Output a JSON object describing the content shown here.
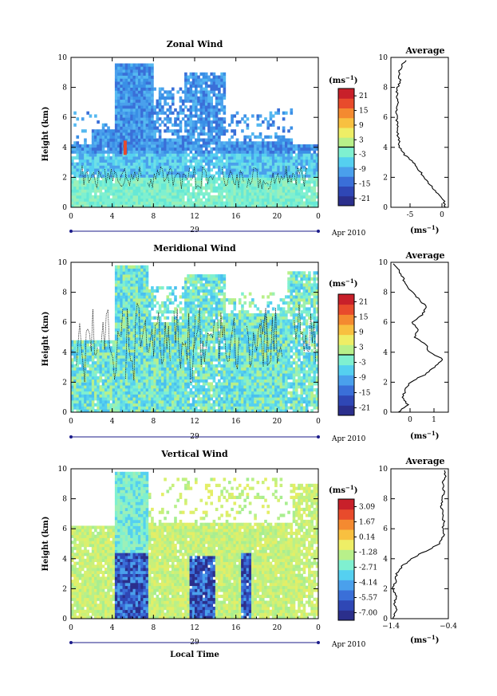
{
  "chart_data": [
    {
      "type": "heatmap",
      "title": "Zonal Wind",
      "ylabel": "Height (km)",
      "xlabel": "",
      "x_ticks": [
        "0",
        "4",
        "8",
        "12",
        "16",
        "20",
        "0"
      ],
      "y_ticks": [
        "0",
        "2",
        "4",
        "6",
        "8",
        "10"
      ],
      "xlim": [
        0,
        24
      ],
      "ylim": [
        0,
        10
      ],
      "date_label": "29",
      "month_label": "Apr 2010",
      "colorbar": {
        "unit": "(ms",
        "unit_exp": "−1",
        "unit_close": ")",
        "ticks": [
          "21",
          "15",
          "9",
          "3",
          "-3",
          "-9",
          "-15",
          "-21"
        ],
        "contour_at": "0"
      },
      "average": {
        "title": "Average",
        "x_ticks": [
          "-5",
          "0"
        ],
        "xlim": [
          -8,
          1
        ],
        "unit": "(ms",
        "unit_exp": "−1",
        "unit_close": ")",
        "profile": [
          [
            0,
            0.6
          ],
          [
            0.5,
            0.2
          ],
          [
            1,
            -0.8
          ],
          [
            1.5,
            -1.8
          ],
          [
            2,
            -2.8
          ],
          [
            2.5,
            -3.6
          ],
          [
            3,
            -4.6
          ],
          [
            3.5,
            -5.8
          ],
          [
            4,
            -6.6
          ],
          [
            4.5,
            -6.8
          ],
          [
            5,
            -6.9
          ],
          [
            5.5,
            -7.0
          ],
          [
            6,
            -7.1
          ],
          [
            6.5,
            -7.1
          ],
          [
            7,
            -7.0
          ],
          [
            7.5,
            -7.1
          ],
          [
            8,
            -6.9
          ],
          [
            8.5,
            -6.6
          ],
          [
            9,
            -6.8
          ],
          [
            9.5,
            -6.2
          ],
          [
            9.8,
            -5.6
          ]
        ]
      },
      "field": "zonal"
    },
    {
      "type": "heatmap",
      "title": "Meridional Wind",
      "ylabel": "Height (km)",
      "xlabel": "",
      "x_ticks": [
        "0",
        "4",
        "8",
        "12",
        "16",
        "20",
        "0"
      ],
      "y_ticks": [
        "0",
        "2",
        "4",
        "6",
        "8",
        "10"
      ],
      "xlim": [
        0,
        24
      ],
      "ylim": [
        0,
        10
      ],
      "date_label": "29",
      "month_label": "Apr 2010",
      "colorbar": {
        "unit": "(ms",
        "unit_exp": "−1",
        "unit_close": ")",
        "ticks": [
          "21",
          "15",
          "9",
          "3",
          "-3",
          "-9",
          "-15",
          "-21"
        ],
        "contour_at": "0"
      },
      "average": {
        "title": "Average",
        "x_ticks": [
          "0",
          "1"
        ],
        "xlim": [
          -0.8,
          1.6
        ],
        "unit": "(ms",
        "unit_exp": "−1",
        "unit_close": ")",
        "profile": [
          [
            0,
            -0.5
          ],
          [
            0.5,
            -0.1
          ],
          [
            1,
            -0.3
          ],
          [
            1.5,
            -0.2
          ],
          [
            2,
            0.0
          ],
          [
            2.5,
            0.6
          ],
          [
            3,
            1.0
          ],
          [
            3.5,
            1.4
          ],
          [
            4,
            0.8
          ],
          [
            4.5,
            0.7
          ],
          [
            5,
            0.2
          ],
          [
            5.5,
            0.3
          ],
          [
            6,
            0.1
          ],
          [
            6.5,
            0.5
          ],
          [
            7,
            0.7
          ],
          [
            7.5,
            0.4
          ],
          [
            8,
            0.1
          ],
          [
            8.5,
            -0.2
          ],
          [
            9,
            -0.3
          ],
          [
            9.5,
            -0.5
          ],
          [
            9.9,
            -0.7
          ]
        ]
      },
      "field": "meridional"
    },
    {
      "type": "heatmap",
      "title": "Vertical Wind",
      "ylabel": "Height (km)",
      "xlabel": "Local Time",
      "x_ticks": [
        "0",
        "4",
        "8",
        "12",
        "16",
        "20",
        "0"
      ],
      "y_ticks": [
        "0",
        "2",
        "4",
        "6",
        "8",
        "10"
      ],
      "xlim": [
        0,
        24
      ],
      "ylim": [
        0,
        10
      ],
      "date_label": "29",
      "month_label": "Apr 2010",
      "colorbar": {
        "unit": "(ms",
        "unit_exp": "−1",
        "unit_close": ")",
        "ticks": [
          "3.09",
          "1.67",
          "0.14",
          "-1.28",
          "-2.71",
          "-4.14",
          "-5.57",
          "-7.00"
        ],
        "contour_at": ""
      },
      "average": {
        "title": "Average",
        "x_ticks": [
          "−1.4",
          "−0.4"
        ],
        "xlim": [
          -1.4,
          -0.4
        ],
        "unit": "(ms",
        "unit_exp": "−1",
        "unit_close": ")",
        "profile": [
          [
            0,
            -1.38
          ],
          [
            0.5,
            -1.3
          ],
          [
            1,
            -1.34
          ],
          [
            1.5,
            -1.3
          ],
          [
            2,
            -1.36
          ],
          [
            2.5,
            -1.32
          ],
          [
            3,
            -1.3
          ],
          [
            3.5,
            -1.2
          ],
          [
            4,
            -1.05
          ],
          [
            4.5,
            -0.8
          ],
          [
            5,
            -0.55
          ],
          [
            5.5,
            -0.48
          ],
          [
            6,
            -0.5
          ],
          [
            6.5,
            -0.48
          ],
          [
            7,
            -0.5
          ],
          [
            7.5,
            -0.52
          ],
          [
            8,
            -0.5
          ],
          [
            8.5,
            -0.48
          ],
          [
            9,
            -0.5
          ],
          [
            9.5,
            -0.45
          ],
          [
            9.9,
            -0.47
          ]
        ]
      },
      "field": "vertical"
    }
  ]
}
